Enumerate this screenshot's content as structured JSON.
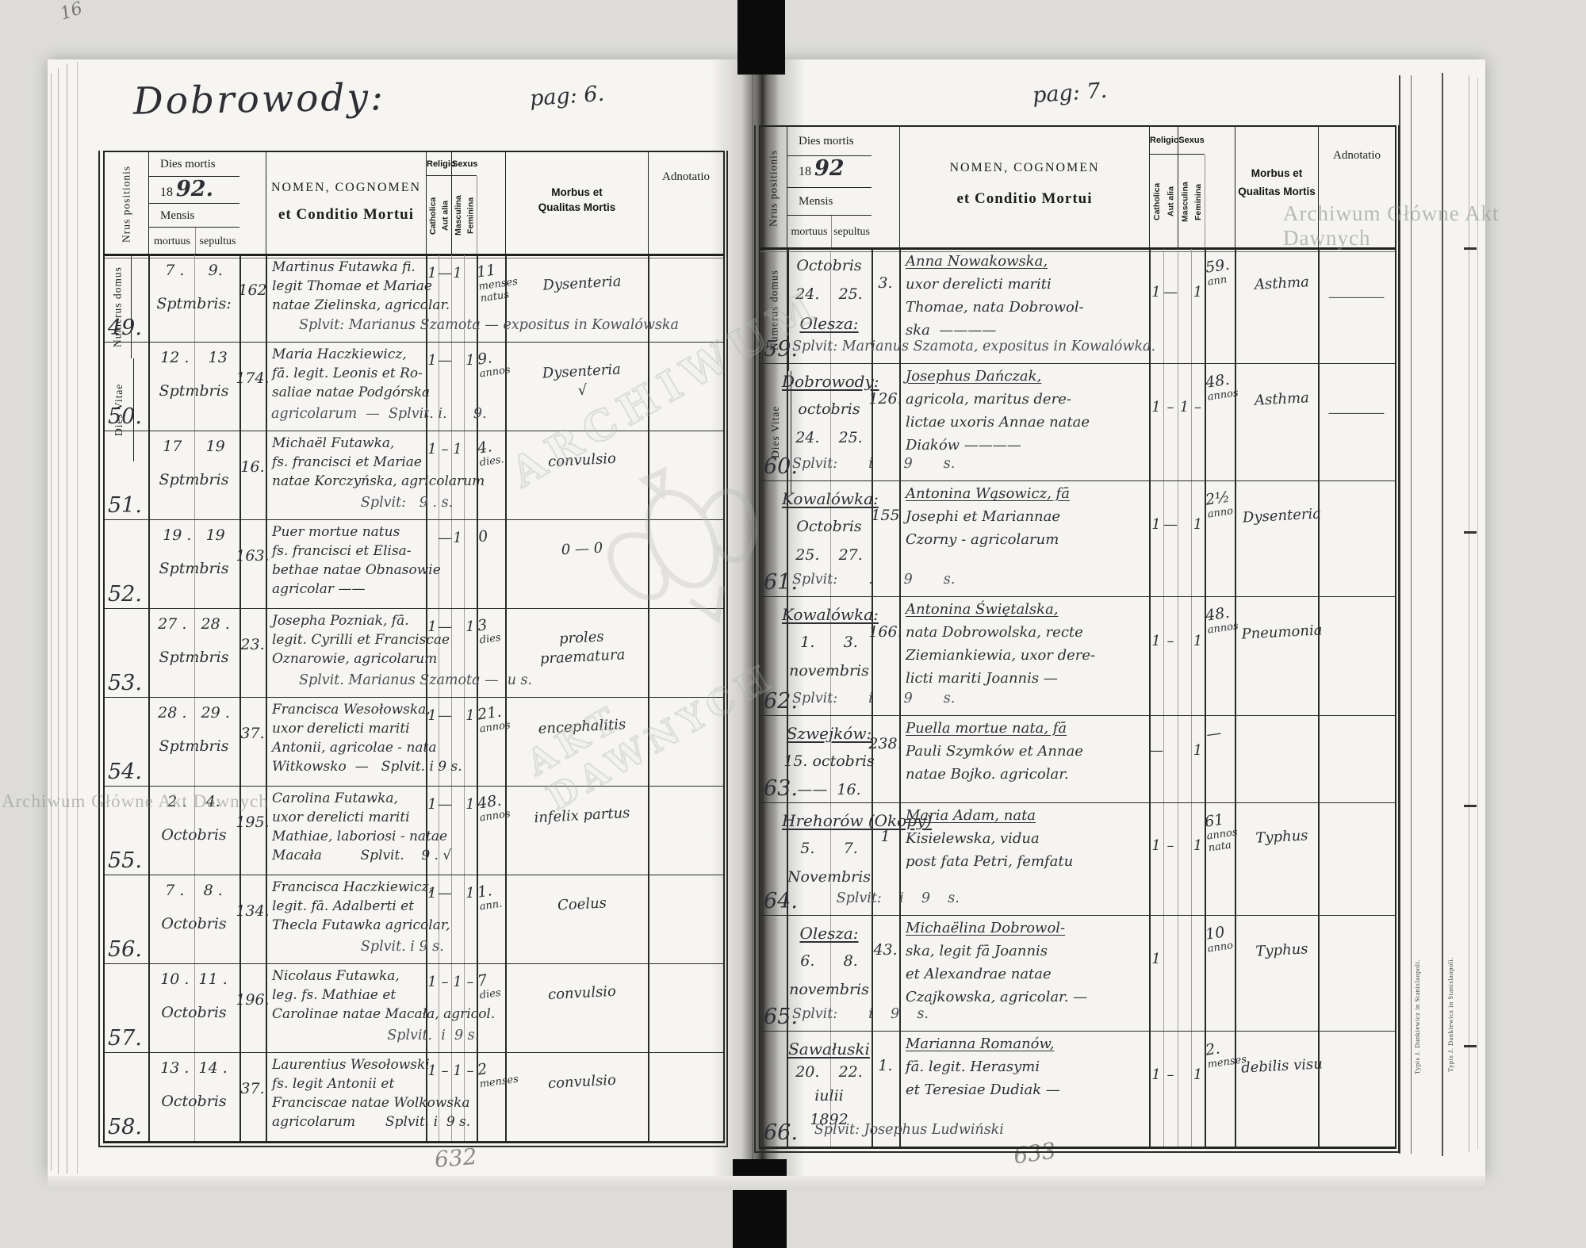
{
  "header_labels": {
    "nrus": "Nrus positionis",
    "dies_mortis": "Dies mortis",
    "mensis": "Mensis",
    "mortuus": "mortuus",
    "sepultus": "sepultus",
    "numerus": "Numerus domus",
    "nomen_1": "NOMEN, COGNOMEN",
    "nomen_2": "et Conditio Mortui",
    "religio": "Religio",
    "sexus": "Sexus",
    "catholica": "Catholica",
    "aut_alia": "Aut alia",
    "masculina": "Masculina",
    "feminina": "Feminina",
    "dies_vitae": "Dies Vitae",
    "morbus_1": "Morbus et",
    "morbus_2": "Qualitas Mortis",
    "adnotatio": "Adnotatio"
  },
  "left_page": {
    "title": "Dobrowody:",
    "page_label": "pag: 6.",
    "pencil_number": "632",
    "year_printed": "18",
    "year_hand": "92.",
    "rows": [
      {
        "nr": "49.",
        "dates": [
          {
            "t": "7 .     9."
          },
          {
            "t": "Sptmbris:"
          }
        ],
        "house": "162",
        "name": [
          {
            "t": "Martinus Futawka fi."
          },
          {
            "t": "legit Thomae et Mariae"
          },
          {
            "t": "natae Zielinska, agricolar."
          }
        ],
        "bottom": "Splvit: Marianus Szamota — expositus in Kowalówska",
        "cath": "1",
        "aut": "—",
        "masc": "1",
        "fem": "",
        "vitae": [
          "11",
          "menses",
          "natus"
        ],
        "morbus": [
          "Dysenteria"
        ],
        "note": ""
      },
      {
        "nr": "50.",
        "dates": [
          {
            "t": "12 .    13"
          },
          {
            "t": "Sptmbris"
          }
        ],
        "house": "174.",
        "name": [
          {
            "t": "Maria Haczkiewicz,"
          },
          {
            "t": "fā. legit. Leonis et Ro-"
          },
          {
            "t": "saliae natae Podgórska"
          }
        ],
        "bottom": "agricolarum  —  Splvit. i.      9.",
        "bx": 210,
        "cath": "1",
        "aut": "—",
        "masc": "",
        "fem": "1",
        "vitae": [
          "9.",
          "annos"
        ],
        "morbus": [
          "Dysenteria",
          "√"
        ],
        "note": ""
      },
      {
        "nr": "51.",
        "dates": [
          {
            "t": "17     19"
          },
          {
            "t": "Sptmbris"
          }
        ],
        "house": "16.",
        "name": [
          {
            "t": "Michaël Futawka,"
          },
          {
            "t": "fs. francisci et Mariae"
          },
          {
            "t": "natae Korczyńska, agricolarum"
          }
        ],
        "bottom": "              Splvit:   9 . s.",
        "cath": "1",
        "aut": "–",
        "masc": "1",
        "fem": "",
        "vitae": [
          "4.",
          "dies."
        ],
        "morbus": [
          "convulsio"
        ],
        "note": ""
      },
      {
        "nr": "52.",
        "dates": [
          {
            "t": "19 .   19"
          },
          {
            "t": "Sptmbris"
          }
        ],
        "house": "163.",
        "name": [
          {
            "t": "Puer mortue natus"
          },
          {
            "t": "fs. francisci et Elisa-"
          },
          {
            "t": "bethae natae Obnasowie"
          },
          {
            "t": "agricolar ——"
          }
        ],
        "bottom": "",
        "cath": "",
        "aut": "—",
        "masc": "1",
        "fem": "",
        "vitae": [
          "0"
        ],
        "morbus": [
          "0  —  0"
        ],
        "note": ""
      },
      {
        "nr": "53.",
        "dates": [
          {
            "t": "27 .   28 ."
          },
          {
            "t": "Sptmbris"
          }
        ],
        "house": "23.",
        "name": [
          {
            "t": "Josepha Pozniak, fā."
          },
          {
            "t": "legit. Cyrilli et Franciscae"
          },
          {
            "t": "Oznarowie, agricolarum"
          }
        ],
        "bottom": "Splvit. Marianus Szamota —  u s.",
        "cath": "1",
        "aut": "—",
        "masc": "",
        "fem": "1",
        "vitae": [
          "3",
          "dies"
        ],
        "morbus": [
          "proles",
          "praematura"
        ],
        "note": ""
      },
      {
        "nr": "54.",
        "dates": [
          {
            "t": "28 .   29 ."
          },
          {
            "t": "Sptmbris"
          }
        ],
        "house": "37.",
        "name": [
          {
            "t": "Francisca Wesołowska,"
          },
          {
            "t": "uxor derelicti mariti"
          },
          {
            "t": "Antonii, agricolae - nata"
          },
          {
            "t": "Witkowsko  —   Splvit. i 9 s."
          }
        ],
        "bottom": "",
        "cath": "1",
        "aut": "—",
        "masc": "",
        "fem": "1",
        "vitae": [
          "21.",
          "annos"
        ],
        "morbus": [
          "encephalitis"
        ],
        "note": ""
      },
      {
        "nr": "55.",
        "dates": [
          {
            "t": "2 .    4."
          },
          {
            "t": "Octobris"
          }
        ],
        "house": "195.",
        "name": [
          {
            "t": "Carolina Futawka,"
          },
          {
            "t": "uxor derelicti mariti"
          },
          {
            "t": "Mathiae, laboriosi - natae"
          },
          {
            "t": "Macała         Splvit.    9 . √"
          }
        ],
        "bottom": "",
        "cath": "1",
        "aut": "—",
        "masc": "",
        "fem": "1",
        "vitae": [
          "48.",
          "annos"
        ],
        "morbus": [
          "infelix partus"
        ],
        "note": ""
      },
      {
        "nr": "56.",
        "dates": [
          {
            "t": "7 .    8 ."
          },
          {
            "t": "Octobris"
          }
        ],
        "house": "134.",
        "name": [
          {
            "t": "Francisca Haczkiewicz,"
          },
          {
            "t": "legit. fā. Adalberti et"
          },
          {
            "t": "Thecla Futawka agricolar,"
          }
        ],
        "bottom": "              Splvit. i 9 s.",
        "cath": "1",
        "aut": "—",
        "masc": "",
        "fem": "1",
        "vitae": [
          "1.",
          "ann."
        ],
        "morbus": [
          "Coelus"
        ],
        "note": ""
      },
      {
        "nr": "57.",
        "dates": [
          {
            "t": "10 .  11 ."
          },
          {
            "t": "Octobris"
          }
        ],
        "house": "196.",
        "name": [
          {
            "t": "Nicolaus Futawka,"
          },
          {
            "t": "leg. fs. Mathiae et"
          },
          {
            "t": "Carolinae natae Macała, agricol."
          }
        ],
        "bottom": "                    Splvit.  i  9 s.",
        "cath": "1",
        "aut": "–",
        "masc": "1",
        "fem": "–",
        "vitae": [
          "7",
          "dies"
        ],
        "morbus": [
          "convulsio"
        ],
        "note": ""
      },
      {
        "nr": "58.",
        "dates": [
          {
            "t": "13 .  14 ."
          },
          {
            "t": "Octobris"
          }
        ],
        "house": "37.",
        "name": [
          {
            "t": "Laurentius Wesołowski"
          },
          {
            "t": "fs. legit Antonii et"
          },
          {
            "t": "Franciscae natae Wolkowska"
          },
          {
            "t": "agricolarum       Splvit. i  9 s."
          }
        ],
        "bottom": "",
        "cath": "1",
        "aut": "–",
        "masc": "1",
        "fem": "–",
        "vitae": [
          "2",
          "menses"
        ],
        "morbus": [
          "convulsio"
        ],
        "note": ""
      }
    ]
  },
  "right_page": {
    "page_label": "pag: 7.",
    "pencil_number": "633",
    "year_printed": "18",
    "year_hand": "92",
    "rows": [
      {
        "nr": "59.",
        "dates": [
          {
            "t": "Octobris"
          },
          {
            "t": "24.    25."
          },
          {
            "t": "Olesza:",
            "u": true
          }
        ],
        "house": "3.",
        "name": [
          {
            "t": "Anna Nowakowska,",
            "u": true
          },
          {
            "t": "uxor derelicti mariti"
          },
          {
            "t": "Thomae, nata Dobrowol-"
          },
          {
            "t": "ska  ————"
          }
        ],
        "bottom": "Splvit: Marianus Szamota, expositus in Kowalówka.",
        "cath": "1",
        "aut": "—",
        "masc": "",
        "fem": "1",
        "vitae": [
          "59.",
          "ann"
        ],
        "morbus": [
          "Asthma"
        ],
        "note": "—"
      },
      {
        "nr": "60.",
        "dates": [
          {
            "t": "Dobrowody:",
            "u": true
          },
          {
            "t": "octobris"
          },
          {
            "t": "24.    25."
          }
        ],
        "house": "126.",
        "name": [
          {
            "t": "Josephus Dańczak,",
            "u": true
          },
          {
            "t": "agricola, maritus dere-"
          },
          {
            "t": "lictae uxoris Annae natae"
          },
          {
            "t": "Diaków ————"
          }
        ],
        "bottom": "Splvit:       i       9       s.",
        "cath": "1",
        "aut": "–",
        "masc": "1",
        "fem": "–",
        "vitae": [
          "48.",
          "annos"
        ],
        "morbus": [
          "Asthma"
        ],
        "note": "—"
      },
      {
        "nr": "61.",
        "dates": [
          {
            "t": "Kowalówka:",
            "u": true
          },
          {
            "t": "Octobris"
          },
          {
            "t": "25.    27."
          }
        ],
        "house": "155",
        "name": [
          {
            "t": "Antonina Wąsowicz, fā",
            "u": true
          },
          {
            "t": "Josephi et Mariannae"
          },
          {
            "t": "Czorny - agricolarum"
          }
        ],
        "bottom": "Splvit:       .       9       s.",
        "cath": "1",
        "aut": "—",
        "masc": "",
        "fem": "1",
        "vitae": [
          "2½",
          "anno"
        ],
        "morbus": [
          "Dysenteria"
        ],
        "note": ""
      },
      {
        "nr": "62.",
        "dates": [
          {
            "t": "Kowalówka:",
            "u": true
          },
          {
            "t": "1.      3."
          },
          {
            "t": "novembris"
          }
        ],
        "house": "166.",
        "name": [
          {
            "t": "Antonina Świętalska,",
            "u": true
          },
          {
            "t": "nata Dobrowolska, recte"
          },
          {
            "t": "Ziemiankiewia, uxor dere-"
          },
          {
            "t": "licti mariti Joannis —"
          }
        ],
        "bottom": "Splvit:       i       9       s.",
        "cath": "1",
        "aut": "–",
        "masc": "",
        "fem": "1",
        "vitae": [
          "48.",
          "annos"
        ],
        "morbus": [
          "Pneumonia"
        ],
        "note": ""
      },
      {
        "nr": "63.",
        "dates": [
          {
            "t": "Szwejków:",
            "u": true
          },
          {
            "t": "15. octobris"
          },
          {
            "t": "——  16."
          }
        ],
        "house": "238.",
        "name": [
          {
            "t": "Puella mortue nata, fā",
            "u": true
          },
          {
            "t": "Pauli Szymków et Annae"
          },
          {
            "t": "natae Bojko. agricolar."
          }
        ],
        "bottom": "",
        "cath": "—",
        "aut": "",
        "masc": "",
        "fem": "1",
        "vitae": [
          "—"
        ],
        "morbus": [
          ""
        ],
        "note": ""
      },
      {
        "nr": "64.",
        "dates": [
          {
            "t": "Hrehorów (Okopy)",
            "u": true
          },
          {
            "t": "5.      7."
          },
          {
            "t": "Novembris"
          }
        ],
        "house": "1",
        "name": [
          {
            "t": "Maria Adam, nata",
            "u": true
          },
          {
            "t": "Kisielewska, vidua"
          },
          {
            "t": "post fata Petri, femfatu"
          }
        ],
        "bottom": "          Splvit:    i    9    s.",
        "cath": "1",
        "aut": "–",
        "masc": "",
        "fem": "1",
        "vitae": [
          "61",
          "annos",
          "nata"
        ],
        "morbus": [
          "Typhus"
        ],
        "note": ""
      },
      {
        "nr": "65.",
        "dates": [
          {
            "t": "Olesza:",
            "u": true
          },
          {
            "t": "6.      8."
          },
          {
            "t": "novembris"
          }
        ],
        "house": "43.",
        "name": [
          {
            "t": "Michaëlina Dobrowol-",
            "u": true
          },
          {
            "t": "ska, legit fā Joannis"
          },
          {
            "t": "et Alexandrae natae"
          },
          {
            "t": "Czajkowska, agricolar. —"
          }
        ],
        "bottom": "Splvit:       i    9    s.",
        "cath": "1",
        "aut": "",
        "masc": "",
        "fem": "",
        "vitae": [
          "10",
          "anno"
        ],
        "morbus": [
          "Typhus"
        ],
        "note": ""
      },
      {
        "nr": "66.",
        "dates": [
          {
            "t": "Sawałuski",
            "u": true
          },
          {
            "t": "20.    22."
          },
          {
            "t": "iulii"
          },
          {
            "t": "1892"
          }
        ],
        "house": "1.",
        "name": [
          {
            "t": "Marianna Romanów,",
            "u": true
          },
          {
            "t": "fā. legit. Herasymi"
          },
          {
            "t": "et Teresiae Dudiak —"
          }
        ],
        "bottom": "     Splvit: Josephus Ludwiński",
        "cath": "1",
        "aut": "–",
        "masc": "",
        "fem": "1",
        "vitae": [
          "2.",
          "menses"
        ],
        "morbus": [
          "debilis visu"
        ],
        "note": ""
      }
    ]
  },
  "watermarks": {
    "archive_line": "Archiwum Główne Akt Dawnych",
    "emblem_top": "ARCHIWUM",
    "emblem_bottom": "AKT DAWNYCH"
  },
  "edge_imprint": "Typis J. Dankiewicz in Stanislaopoli.",
  "corner_mark": "16"
}
